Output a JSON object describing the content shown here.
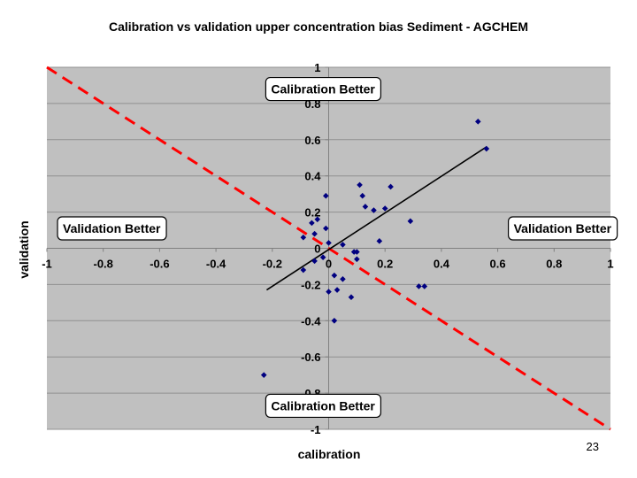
{
  "page_number": "23",
  "chart_data": {
    "type": "scatter",
    "title": "Calibration vs validation upper concentration bias Sediment - AGCHEM",
    "xlabel": "calibration",
    "ylabel": "validation",
    "xlim": [
      -1,
      1
    ],
    "ylim": [
      -1,
      1
    ],
    "x_ticks": [
      "-1",
      "-0.8",
      "-0.6",
      "-0.4",
      "-0.2",
      "0",
      "0.2",
      "0.4",
      "0.6",
      "0.8",
      "1"
    ],
    "y_ticks": [
      "1",
      "0.8",
      "0.6",
      "0.4",
      "0.2",
      "0",
      "-0.2",
      "-0.4",
      "-0.6",
      "-0.8",
      "-1"
    ],
    "grid": true,
    "background_color": "#c0c0c0",
    "point_color": "#000080",
    "points": [
      {
        "x": -0.23,
        "y": -0.7
      },
      {
        "x": -0.09,
        "y": 0.06
      },
      {
        "x": -0.09,
        "y": -0.12
      },
      {
        "x": -0.06,
        "y": 0.14
      },
      {
        "x": -0.05,
        "y": 0.08
      },
      {
        "x": -0.05,
        "y": -0.07
      },
      {
        "x": -0.04,
        "y": 0.16
      },
      {
        "x": -0.02,
        "y": -0.05
      },
      {
        "x": -0.01,
        "y": 0.29
      },
      {
        "x": -0.01,
        "y": 0.11
      },
      {
        "x": 0.0,
        "y": 0.03
      },
      {
        "x": 0.0,
        "y": -0.24
      },
      {
        "x": 0.02,
        "y": -0.4
      },
      {
        "x": 0.02,
        "y": -0.15
      },
      {
        "x": 0.03,
        "y": -0.23
      },
      {
        "x": 0.05,
        "y": 0.02
      },
      {
        "x": 0.05,
        "y": -0.17
      },
      {
        "x": 0.08,
        "y": -0.27
      },
      {
        "x": 0.09,
        "y": -0.02
      },
      {
        "x": 0.1,
        "y": -0.02
      },
      {
        "x": 0.1,
        "y": -0.06
      },
      {
        "x": 0.11,
        "y": 0.35
      },
      {
        "x": 0.12,
        "y": 0.29
      },
      {
        "x": 0.13,
        "y": 0.23
      },
      {
        "x": 0.16,
        "y": 0.21
      },
      {
        "x": 0.18,
        "y": 0.04
      },
      {
        "x": 0.2,
        "y": 0.22
      },
      {
        "x": 0.22,
        "y": 0.34
      },
      {
        "x": 0.29,
        "y": 0.15
      },
      {
        "x": 0.32,
        "y": -0.21
      },
      {
        "x": 0.34,
        "y": -0.21
      },
      {
        "x": 0.53,
        "y": 0.7
      },
      {
        "x": 0.56,
        "y": 0.55
      }
    ],
    "trend_line": {
      "x": [
        -0.22,
        0.56
      ],
      "y": [
        -0.23,
        0.56
      ],
      "color": "#000000"
    },
    "reference_line": {
      "x": [
        -1,
        1
      ],
      "y": [
        1,
        -1
      ],
      "color": "#ff0000",
      "style": "dashed"
    },
    "annotations": [
      {
        "text": "Calibration Better",
        "x": -0.02,
        "y": 0.88
      },
      {
        "text": "Validation Better",
        "x": -0.77,
        "y": 0.11
      },
      {
        "text": "Validation Better",
        "x": 0.83,
        "y": 0.11
      },
      {
        "text": "Calibration Better",
        "x": -0.02,
        "y": -0.87
      }
    ]
  }
}
